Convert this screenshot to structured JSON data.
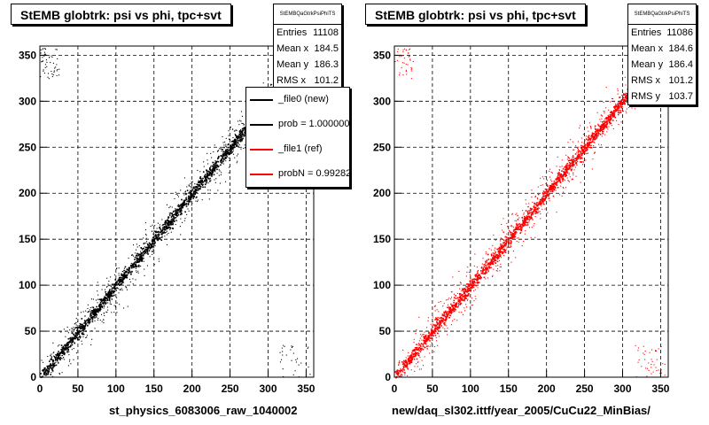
{
  "chart_data": [
    {
      "type": "scatter",
      "title": "StEMB globtrk: psi vs phi, tpc+svt",
      "xlabel": "st_physics_6083006_raw_1040002",
      "ylabel": "",
      "xlim": [
        0,
        360
      ],
      "ylim": [
        0,
        360
      ],
      "xticks": [
        0,
        50,
        100,
        150,
        200,
        250,
        300,
        350
      ],
      "yticks": [
        0,
        50,
        100,
        150,
        200,
        250,
        300,
        350
      ],
      "grid": true,
      "color": "#000000",
      "trend": {
        "x": [
          0,
          360
        ],
        "y": [
          0,
          360
        ]
      },
      "stats": {
        "name": "StEMBQaGtrkPsiPhiTS",
        "rows": [
          {
            "label": "Entries",
            "value": "11108"
          },
          {
            "label": "Mean x",
            "value": "184.5"
          },
          {
            "label": "Mean y",
            "value": "186.3"
          },
          {
            "label": "RMS x",
            "value": "101.2"
          }
        ]
      },
      "legend": [
        {
          "label": "_file0 (new)",
          "color": "#000000"
        },
        {
          "label": "prob = 1.000000",
          "color": "#000000"
        },
        {
          "label": "_file1 (ref)",
          "color": "#ff0000"
        },
        {
          "label": "probN = 0.992820",
          "color": "#ff0000"
        }
      ]
    },
    {
      "type": "scatter",
      "title": "StEMB globtrk: psi vs phi, tpc+svt",
      "xlabel": "new/daq_sl302.ittf/year_2005/CuCu22_MinBias/",
      "ylabel": "",
      "xlim": [
        0,
        360
      ],
      "ylim": [
        0,
        360
      ],
      "xticks": [
        0,
        50,
        100,
        150,
        200,
        250,
        300,
        350
      ],
      "yticks": [
        0,
        50,
        100,
        150,
        200,
        250,
        300,
        350
      ],
      "grid": true,
      "color": "#ff0000",
      "trend": {
        "x": [
          0,
          360
        ],
        "y": [
          0,
          360
        ]
      },
      "stats": {
        "name": "StEMBQaGtrkPsiPhiTS",
        "rows": [
          {
            "label": "Entries",
            "value": "11086"
          },
          {
            "label": "Mean x",
            "value": "184.6"
          },
          {
            "label": "Mean y",
            "value": "186.4"
          },
          {
            "label": "RMS x",
            "value": "101.2"
          },
          {
            "label": "RMS y",
            "value": "103.7"
          }
        ]
      }
    }
  ]
}
